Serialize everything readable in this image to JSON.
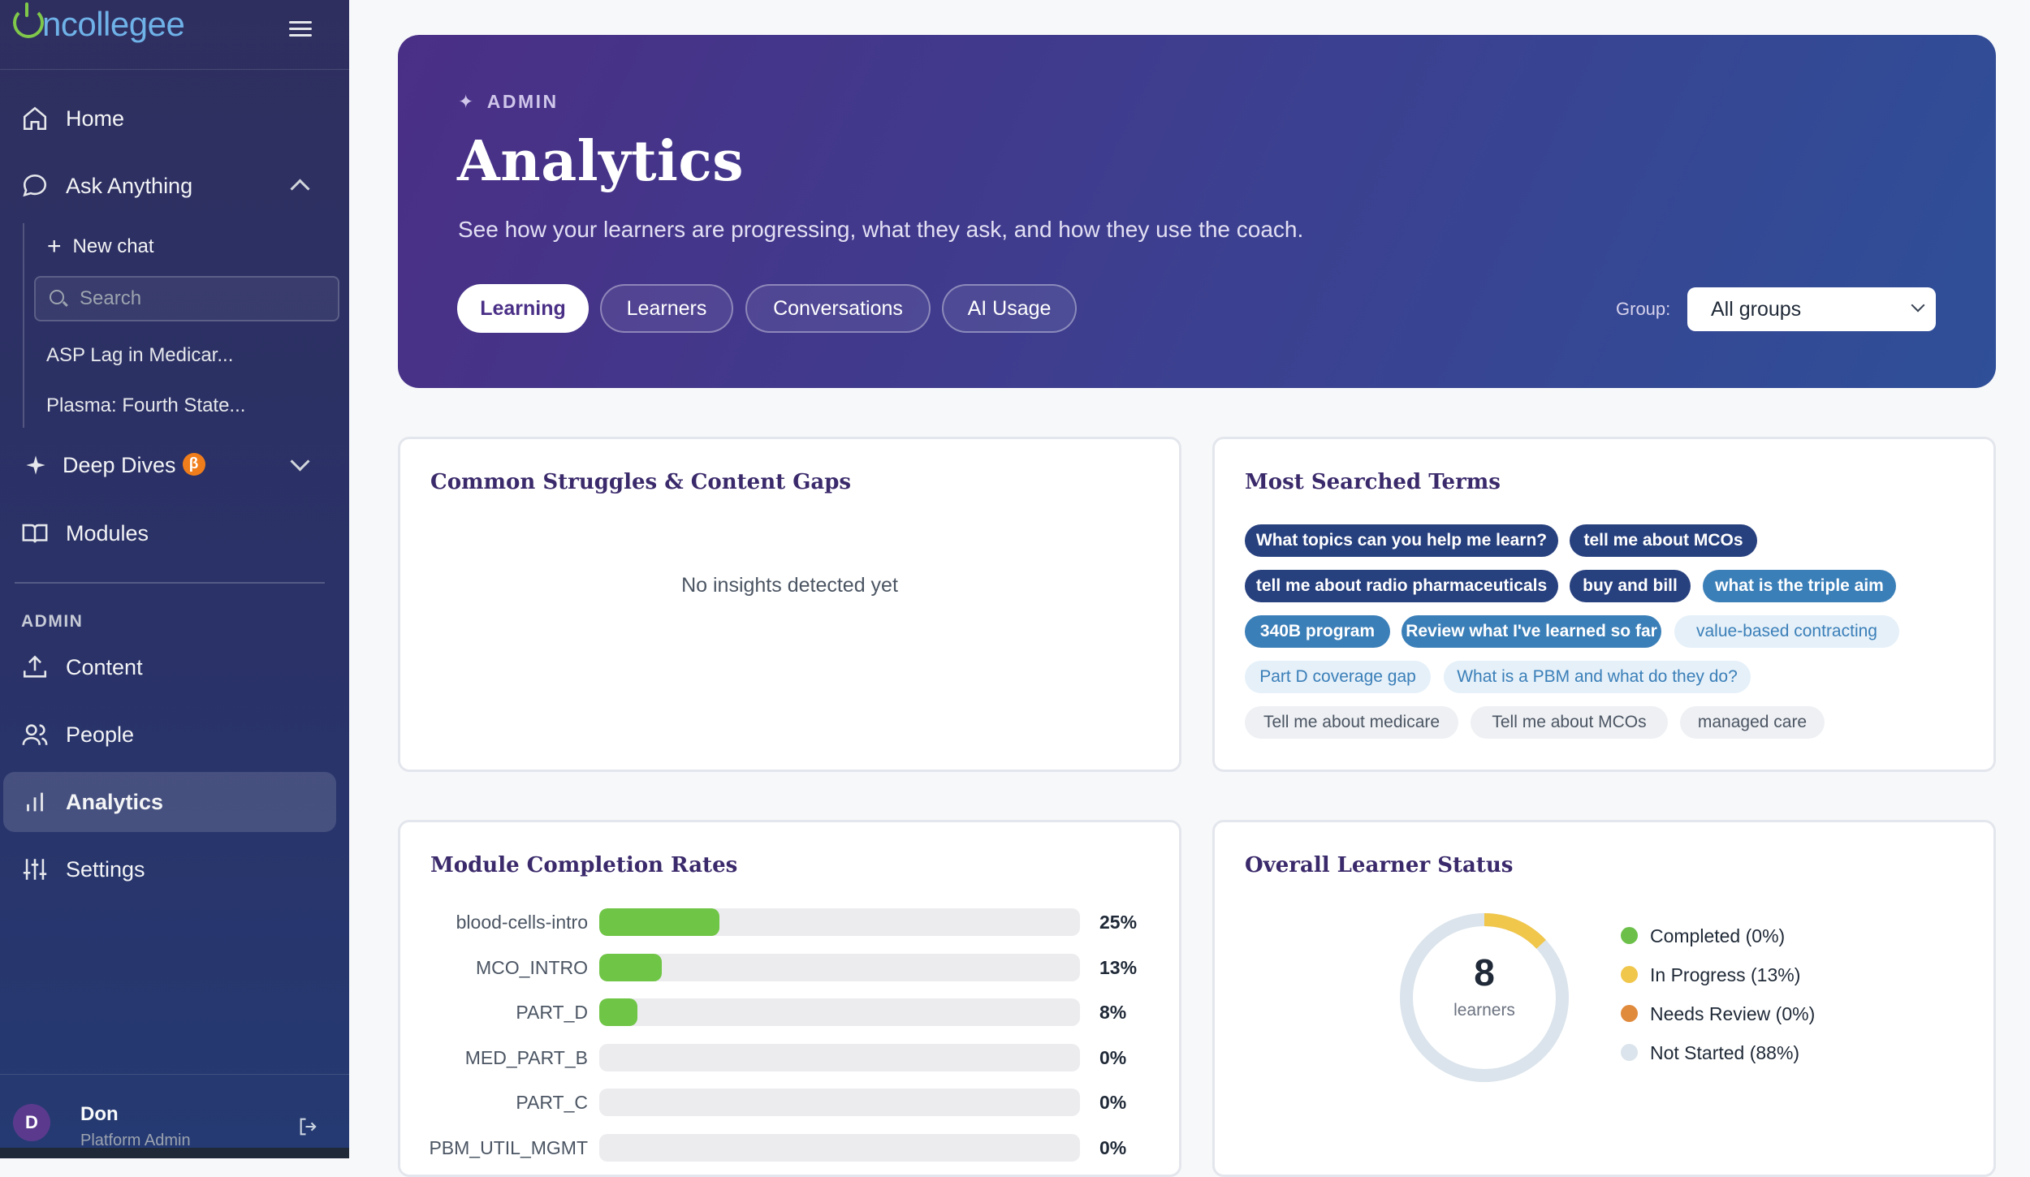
{
  "app": {
    "logo": "ncollegee"
  },
  "sidebar": {
    "home": "Home",
    "ask_anything": "Ask Anything",
    "new_chat": "New chat",
    "search_placeholder": "Search",
    "chats": [
      "ASP Lag in Medicar...",
      "Plasma: Fourth State..."
    ],
    "deep_dives": "Deep Dives",
    "deep_dives_badge": "β",
    "modules": "Modules",
    "admin_heading": "ADMIN",
    "content": "Content",
    "people": "People",
    "analytics": "Analytics",
    "settings": "Settings",
    "user": {
      "initial": "D",
      "name": "Don",
      "role": "Platform Admin"
    }
  },
  "hero": {
    "eyebrow": "ADMIN",
    "title": "Analytics",
    "subtitle": "See how your learners are progressing, what they ask, and how they use the coach.",
    "tabs": [
      "Learning",
      "Learners",
      "Conversations",
      "AI Usage"
    ],
    "active_tab": "Learning",
    "group_label": "Group:",
    "group_value": "All groups"
  },
  "struggles": {
    "title": "Common Struggles & Content Gaps",
    "empty": "No insights detected yet"
  },
  "search_terms": {
    "title": "Most Searched Terms",
    "terms": [
      "What topics can you help me learn?",
      "tell me about MCOs",
      "tell me about radio pharmaceuticals",
      "buy and bill",
      "what is the triple aim",
      "340B program",
      "Review what I've learned so far",
      "value-based contracting",
      "Part D coverage gap",
      "What is a PBM and what do they do?",
      "Tell me about medicare",
      "Tell me about MCOs",
      "managed care"
    ]
  },
  "module_completion": {
    "title": "Module Completion Rates",
    "rows": [
      {
        "name": "blood-cells-intro",
        "pct": 25,
        "label": "25%"
      },
      {
        "name": "MCO_INTRO",
        "pct": 13,
        "label": "13%"
      },
      {
        "name": "PART_D",
        "pct": 8,
        "label": "8%"
      },
      {
        "name": "MED_PART_B",
        "pct": 0,
        "label": "0%"
      },
      {
        "name": "PART_C",
        "pct": 0,
        "label": "0%"
      },
      {
        "name": "PBM_UTIL_MGMT",
        "pct": 0,
        "label": "0%"
      }
    ]
  },
  "learner_status": {
    "title": "Overall Learner Status",
    "total": "8",
    "total_label": "learners",
    "legend": [
      {
        "label": "Completed (0%)",
        "pct": 0,
        "color": "#6cc04a"
      },
      {
        "label": "In Progress (13%)",
        "pct": 13,
        "color": "#f0c64b"
      },
      {
        "label": "Needs Review (0%)",
        "pct": 0,
        "color": "#e08a3c"
      },
      {
        "label": "Not Started (88%)",
        "pct": 88,
        "color": "#dbe4ec"
      }
    ]
  },
  "colors": {
    "accent": "#4a2f86",
    "chip_dark": "#27407e",
    "chip_mid": "#3b7fb8",
    "bar_fill": "#6fc545"
  },
  "icons": [
    "home-icon",
    "chat-bubble-icon",
    "plus-icon",
    "search-icon",
    "sparkle-icon",
    "book-icon",
    "upload-icon",
    "people-icon",
    "bar-chart-icon",
    "sliders-icon",
    "logout-icon",
    "menu-icon"
  ]
}
